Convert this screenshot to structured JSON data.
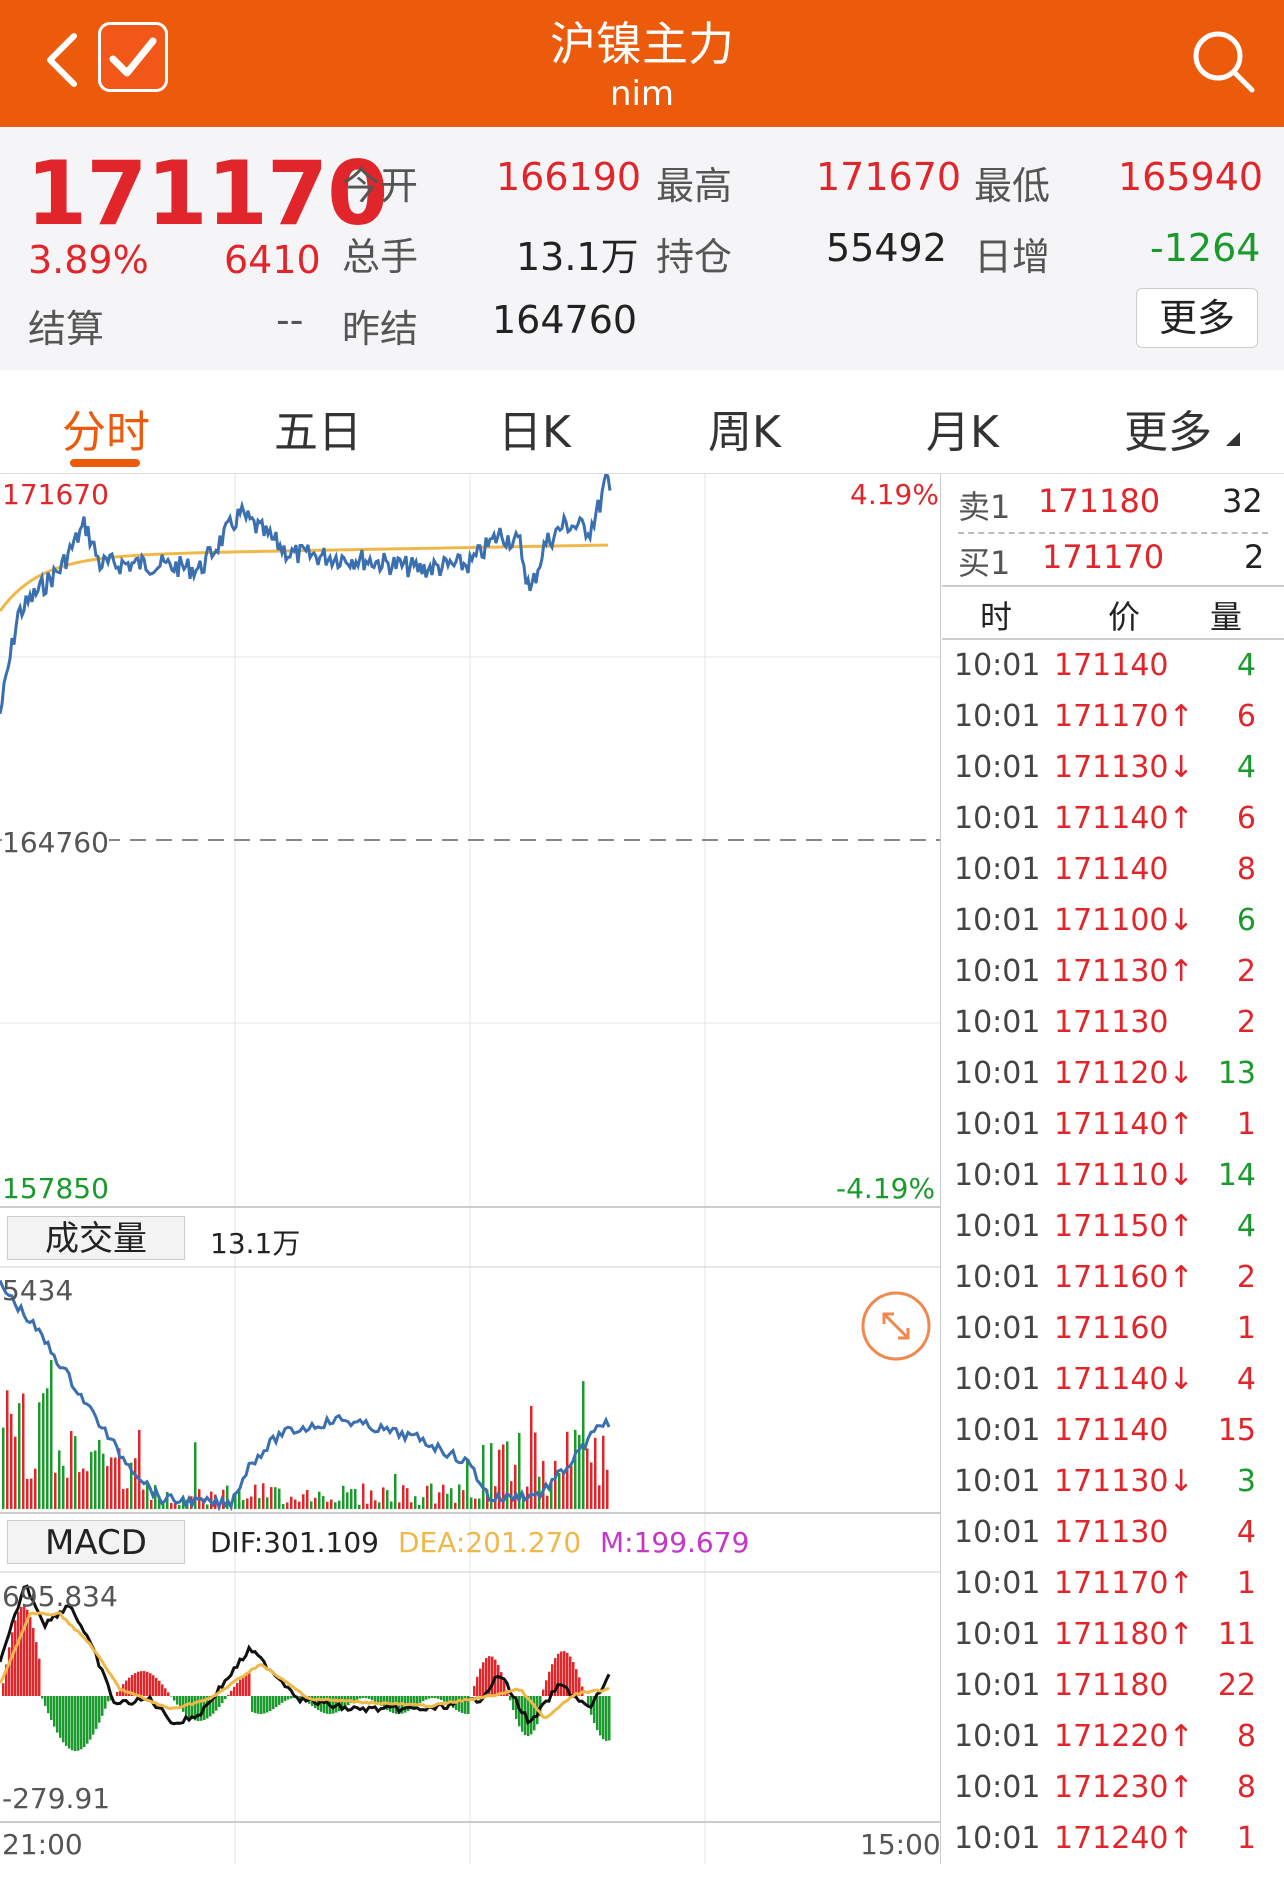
{
  "header": {
    "title": "沪镍主力",
    "subtitle": "nim",
    "icons": [
      "back-icon",
      "check-icon",
      "search-icon"
    ]
  },
  "quote": {
    "last_price": "171170",
    "change_pct": "3.89%",
    "change": "6410",
    "settle_label": "结算",
    "settle_value": "--",
    "open_label": "今开",
    "open_value": "166190",
    "volume_label": "总手",
    "volume_value": "13.1万",
    "prev_settle_label": "昨结",
    "prev_settle_value": "164760",
    "high_label": "最高",
    "high_value": "171670",
    "oi_label": "持仓",
    "oi_value": "55492",
    "low_label": "最低",
    "low_value": "165940",
    "daily_inc_label": "日增",
    "daily_inc_value": "-1264",
    "more_button": "更多"
  },
  "tabs": [
    {
      "label": "分时",
      "active": true
    },
    {
      "label": "五日"
    },
    {
      "label": "日K"
    },
    {
      "label": "周K"
    },
    {
      "label": "月K"
    },
    {
      "label": "更多"
    }
  ],
  "price_chart": {
    "top_price": "171670",
    "top_pct": "4.19%",
    "mid_price": "164760",
    "bottom_price": "157850",
    "bottom_pct": "-4.19%"
  },
  "volume_panel": {
    "label": "成交量",
    "value": "13.1万",
    "max_label": "5434"
  },
  "macd_panel": {
    "label": "MACD",
    "dif": "DIF:301.109",
    "dea": "DEA:201.270",
    "m": "M:199.679",
    "top_label": "695.834",
    "bottom_label": "-279.91"
  },
  "time_axis": {
    "start": "21:00",
    "end": "15:00"
  },
  "order_book": {
    "sell1_label": "卖1",
    "sell1_price": "171180",
    "sell1_vol": "32",
    "buy1_label": "买1",
    "buy1_price": "171170",
    "buy1_vol": "2",
    "col_time": "时",
    "col_price": "价",
    "col_vol": "量"
  },
  "trades": [
    {
      "time": "10:01",
      "price": "171140",
      "arrow": "",
      "vol": "4",
      "dir": "down"
    },
    {
      "time": "10:01",
      "price": "171170",
      "arrow": "↑",
      "vol": "6",
      "dir": "up"
    },
    {
      "time": "10:01",
      "price": "171130",
      "arrow": "↓",
      "vol": "4",
      "dir": "down"
    },
    {
      "time": "10:01",
      "price": "171140",
      "arrow": "↑",
      "vol": "6",
      "dir": "up"
    },
    {
      "time": "10:01",
      "price": "171140",
      "arrow": "",
      "vol": "8",
      "dir": "up"
    },
    {
      "time": "10:01",
      "price": "171100",
      "arrow": "↓",
      "vol": "6",
      "dir": "down"
    },
    {
      "time": "10:01",
      "price": "171130",
      "arrow": "↑",
      "vol": "2",
      "dir": "up"
    },
    {
      "time": "10:01",
      "price": "171130",
      "arrow": "",
      "vol": "2",
      "dir": "up"
    },
    {
      "time": "10:01",
      "price": "171120",
      "arrow": "↓",
      "vol": "13",
      "dir": "down"
    },
    {
      "time": "10:01",
      "price": "171140",
      "arrow": "↑",
      "vol": "1",
      "dir": "up"
    },
    {
      "time": "10:01",
      "price": "171110",
      "arrow": "↓",
      "vol": "14",
      "dir": "down"
    },
    {
      "time": "10:01",
      "price": "171150",
      "arrow": "↑",
      "vol": "4",
      "dir": "down"
    },
    {
      "time": "10:01",
      "price": "171160",
      "arrow": "↑",
      "vol": "2",
      "dir": "up"
    },
    {
      "time": "10:01",
      "price": "171160",
      "arrow": "",
      "vol": "1",
      "dir": "up"
    },
    {
      "time": "10:01",
      "price": "171140",
      "arrow": "↓",
      "vol": "4",
      "dir": "up"
    },
    {
      "time": "10:01",
      "price": "171140",
      "arrow": "",
      "vol": "15",
      "dir": "up"
    },
    {
      "time": "10:01",
      "price": "171130",
      "arrow": "↓",
      "vol": "3",
      "dir": "down"
    },
    {
      "time": "10:01",
      "price": "171130",
      "arrow": "",
      "vol": "4",
      "dir": "up"
    },
    {
      "time": "10:01",
      "price": "171170",
      "arrow": "↑",
      "vol": "1",
      "dir": "up"
    },
    {
      "time": "10:01",
      "price": "171180",
      "arrow": "↑",
      "vol": "11",
      "dir": "up"
    },
    {
      "time": "10:01",
      "price": "171180",
      "arrow": "",
      "vol": "22",
      "dir": "up"
    },
    {
      "time": "10:01",
      "price": "171220",
      "arrow": "↑",
      "vol": "8",
      "dir": "up"
    },
    {
      "time": "10:01",
      "price": "171230",
      "arrow": "↑",
      "vol": "8",
      "dir": "up"
    },
    {
      "time": "10:01",
      "price": "171240",
      "arrow": "↑",
      "vol": "1",
      "dir": "up"
    }
  ],
  "colors": {
    "brand": "#ec5a0b",
    "up": "#e0262a",
    "down": "#1b9a2c",
    "price_line": "#3a6fb0",
    "avg_line": "#f0b848",
    "macd_dea": "#f0b848",
    "macd_m": "#c437c8"
  }
}
